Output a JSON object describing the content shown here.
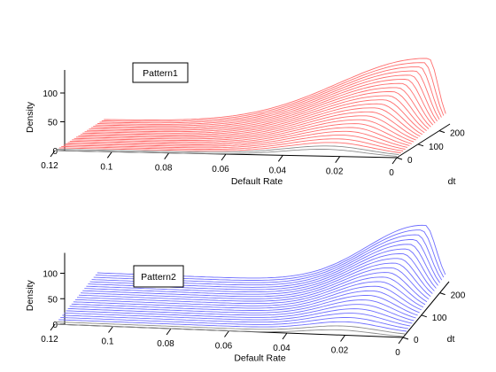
{
  "chart_data": [
    {
      "type": "line",
      "plot_style": "3d-waterfall",
      "legend_label": "Pattern1",
      "xlabel": "Default Rate",
      "ylabel": "Density",
      "zlabel": "dt",
      "x_ticks": [
        "0.12",
        "0.1",
        "0.08",
        "0.06",
        "0.04",
        "0.02",
        "0"
      ],
      "y_ticks": [
        "0",
        "50",
        "100"
      ],
      "z_ticks": [
        "0",
        "100",
        "200"
      ],
      "xlim": [
        0,
        0.12
      ],
      "ylim": [
        0,
        140
      ],
      "zlim": [
        0,
        250
      ],
      "line_color": "#ff6e6e",
      "base_line_color": "#8c8c8c",
      "dt_values": [
        0,
        10,
        20,
        30,
        40,
        50,
        60,
        70,
        80,
        90,
        100,
        110,
        120,
        130,
        140,
        150,
        160,
        170,
        180,
        190,
        200,
        210,
        220,
        230
      ],
      "curve_model": {
        "peak_default_rate_at_dt0": 0.025,
        "peak_default_rate_at_dt_max": 0.006,
        "peak_density_at_dt0": 12,
        "peak_density_at_dt_max": 118,
        "right_tail_extent_at_dt0": 0.045,
        "right_tail_extent_at_dt_max": 0.095
      }
    },
    {
      "type": "line",
      "plot_style": "3d-waterfall",
      "legend_label": "Pattern2",
      "xlabel": "Default Rate",
      "ylabel": "Density",
      "zlabel": "dt",
      "x_ticks": [
        "0.12",
        "0.1",
        "0.08",
        "0.06",
        "0.04",
        "0.02",
        "0"
      ],
      "y_ticks": [
        "0",
        "50",
        "100"
      ],
      "z_ticks": [
        "0",
        "100",
        "200"
      ],
      "xlim": [
        0,
        0.12
      ],
      "ylim": [
        0,
        140
      ],
      "zlim": [
        0,
        250
      ],
      "line_color": "#6e6eff",
      "base_line_color": "#8c8c8c",
      "dt_values": [
        0,
        10,
        20,
        30,
        40,
        50,
        60,
        70,
        80,
        90,
        100,
        110,
        120,
        130,
        140,
        150,
        160,
        170,
        180,
        190,
        200,
        210,
        220,
        230
      ],
      "curve_model": {
        "peak_default_rate_at_dt0": 0.022,
        "peak_default_rate_at_dt_max": 0.007,
        "peak_density_at_dt0": 10,
        "peak_density_at_dt_max": 118,
        "right_tail_extent_at_dt0": 0.035,
        "right_tail_extent_at_dt_max": 0.06
      }
    }
  ]
}
